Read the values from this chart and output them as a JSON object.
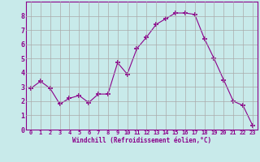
{
  "x": [
    0,
    1,
    2,
    3,
    4,
    5,
    6,
    7,
    8,
    9,
    10,
    11,
    12,
    13,
    14,
    15,
    16,
    17,
    18,
    19,
    20,
    21,
    22,
    23
  ],
  "y": [
    2.9,
    3.4,
    2.9,
    1.8,
    2.2,
    2.4,
    1.9,
    2.5,
    2.5,
    4.7,
    3.9,
    5.7,
    6.5,
    7.4,
    7.8,
    8.2,
    8.2,
    8.1,
    6.4,
    5.0,
    3.5,
    2.0,
    1.7,
    0.3
  ],
  "line_color": "#8b008b",
  "marker": "+",
  "marker_size": 4,
  "bg_color": "#c8eaea",
  "grid_color": "#aaaaaa",
  "xlabel": "Windchill (Refroidissement éolien,°C)",
  "xlabel_color": "#8b008b",
  "tick_color": "#8b008b",
  "xlim": [
    -0.5,
    23.5
  ],
  "ylim": [
    0,
    9
  ],
  "xticks": [
    0,
    1,
    2,
    3,
    4,
    5,
    6,
    7,
    8,
    9,
    10,
    11,
    12,
    13,
    14,
    15,
    16,
    17,
    18,
    19,
    20,
    21,
    22,
    23
  ],
  "yticks": [
    0,
    1,
    2,
    3,
    4,
    5,
    6,
    7,
    8
  ],
  "spine_color": "#8b008b",
  "title_color": "#8b008b"
}
